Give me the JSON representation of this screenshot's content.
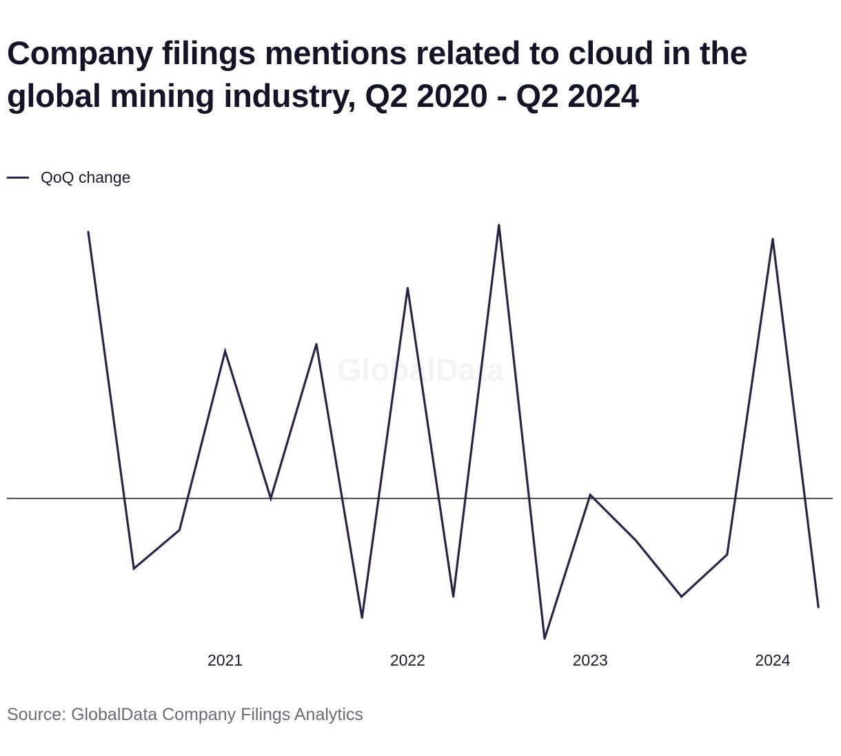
{
  "title": "Company filings mentions related to cloud in the global mining industry, Q2 2020 - Q2 2024",
  "source": "Source: GlobalData Company Filings Analytics",
  "watermark": "GlobalData",
  "colors": {
    "series": "#2d2147",
    "zero_line": "#1a1a1a",
    "watermark": "#f4f4f6"
  },
  "chart_data": {
    "type": "line",
    "x": [
      "Q2 2020",
      "Q3 2020",
      "Q4 2020",
      "Q1 2021",
      "Q2 2021",
      "Q3 2021",
      "Q4 2021",
      "Q1 2022",
      "Q2 2022",
      "Q3 2022",
      "Q4 2022",
      "Q1 2023",
      "Q2 2023",
      "Q3 2023",
      "Q4 2023",
      "Q1 2024",
      "Q2 2024"
    ],
    "x_tick_labels": [
      {
        "at": "Q1 2021",
        "label": "2021"
      },
      {
        "at": "Q1 2022",
        "label": "2022"
      },
      {
        "at": "Q1 2023",
        "label": "2023"
      },
      {
        "at": "Q1 2024",
        "label": "2024"
      }
    ],
    "series": [
      {
        "name": "QoQ change",
        "values": [
          3.8,
          -1.0,
          -0.45,
          2.1,
          0.0,
          2.2,
          -1.7,
          3.0,
          -1.4,
          3.9,
          -2.0,
          0.05,
          -0.6,
          -1.4,
          -0.8,
          3.7,
          -1.55
        ]
      }
    ],
    "ylim": [
      -2.0,
      3.9
    ],
    "zero_line": true,
    "grid": false,
    "legend_position": "top-left",
    "xlabel": "",
    "ylabel": ""
  }
}
